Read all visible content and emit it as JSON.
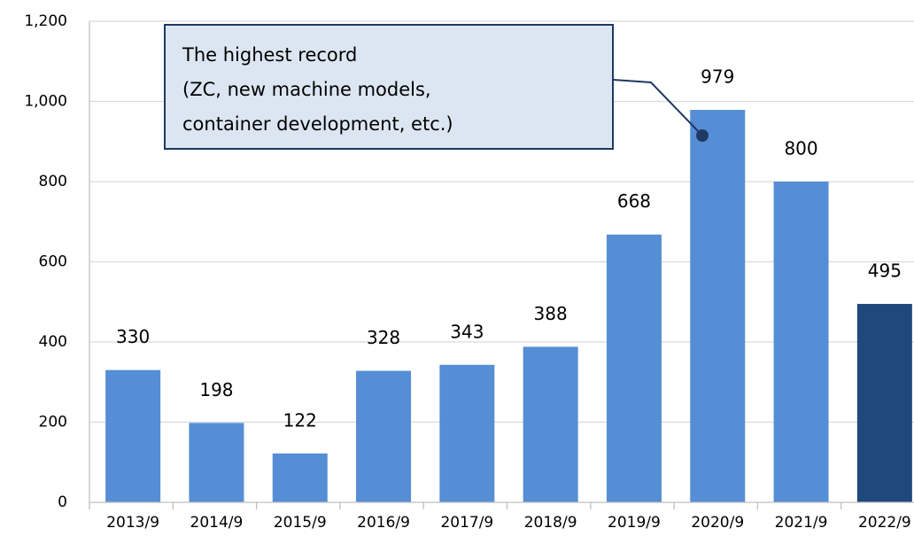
{
  "chart_data": {
    "type": "bar",
    "categories": [
      "2013/9",
      "2014/9",
      "2015/9",
      "2016/9",
      "2017/9",
      "2018/9",
      "2019/9",
      "2020/9",
      "2021/9",
      "2022/9"
    ],
    "values": [
      330,
      198,
      122,
      328,
      343,
      388,
      668,
      979,
      800,
      495
    ],
    "colors": [
      "#558ed5",
      "#558ed5",
      "#558ed5",
      "#558ed5",
      "#558ed5",
      "#558ed5",
      "#558ed5",
      "#558ed5",
      "#558ed5",
      "#1f497d"
    ],
    "ylim": [
      0,
      1200
    ],
    "yticks": [
      0,
      200,
      400,
      600,
      800,
      {
        "value": 1000,
        "label": "1,000"
      },
      {
        "value": 1200,
        "label": "1,200"
      }
    ],
    "grid": true,
    "annotation": [
      "The highest record",
      "(ZC, new machine models,",
      "container development, etc.)"
    ]
  }
}
